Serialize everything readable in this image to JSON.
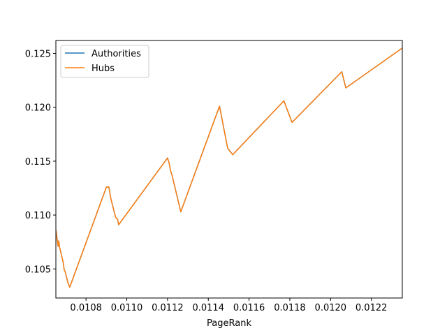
{
  "chart_data": {
    "type": "line",
    "title": "",
    "xlabel": "PageRank",
    "ylabel": "",
    "xlim": [
      0.010652,
      0.012352
    ],
    "ylim": [
      0.1023,
      0.1262
    ],
    "xticks": [
      0.0108,
      0.011,
      0.0112,
      0.0114,
      0.0116,
      0.0118,
      0.012,
      0.0122
    ],
    "xtick_labels": [
      "0.0108",
      "0.0110",
      "0.0112",
      "0.0114",
      "0.0116",
      "0.0118",
      "0.0120",
      "0.0122"
    ],
    "yticks": [
      0.105,
      0.11,
      0.115,
      0.12,
      0.125
    ],
    "ytick_labels": [
      "0.105",
      "0.110",
      "0.115",
      "0.120",
      "0.125"
    ],
    "grid": false,
    "legend_position": "top-left",
    "series": [
      {
        "name": "Authorities",
        "color": "#1f77b4",
        "x": [
          0.010652,
          0.010663,
          0.010666,
          0.01067,
          0.010673,
          0.010688,
          0.010693,
          0.010697,
          0.01071,
          0.01072,
          0.0109,
          0.010912,
          0.010922,
          0.010945,
          0.010955,
          0.01096,
          0.0112,
          0.011208,
          0.011215,
          0.011222,
          0.011265,
          0.011455,
          0.011495,
          0.01152,
          0.011771,
          0.011811,
          0.012055,
          0.012075,
          0.012352
        ],
        "y": [
          0.1086,
          0.1071,
          0.1076,
          0.107,
          0.1068,
          0.1056,
          0.1049,
          0.1048,
          0.1038,
          0.1033,
          0.1126,
          0.1126,
          0.1115,
          0.1098,
          0.1096,
          0.1091,
          0.1153,
          0.1148,
          0.1141,
          0.1137,
          0.1103,
          0.1201,
          0.1162,
          0.1156,
          0.1206,
          0.1186,
          0.1233,
          0.1218,
          0.1255
        ]
      },
      {
        "name": "Hubs",
        "color": "#ff7f0e",
        "x": [
          0.010652,
          0.010663,
          0.010666,
          0.01067,
          0.010673,
          0.010688,
          0.010693,
          0.010697,
          0.01071,
          0.01072,
          0.0109,
          0.010912,
          0.010922,
          0.010945,
          0.010955,
          0.01096,
          0.0112,
          0.011208,
          0.011215,
          0.011222,
          0.011265,
          0.011455,
          0.011495,
          0.01152,
          0.011771,
          0.011811,
          0.012055,
          0.012075,
          0.012352
        ],
        "y": [
          0.1086,
          0.1071,
          0.1076,
          0.107,
          0.1068,
          0.1056,
          0.1049,
          0.1048,
          0.1038,
          0.1033,
          0.1126,
          0.1126,
          0.1115,
          0.1098,
          0.1096,
          0.1091,
          0.1153,
          0.1148,
          0.1141,
          0.1137,
          0.1103,
          0.1201,
          0.1162,
          0.1156,
          0.1206,
          0.1186,
          0.1233,
          0.1218,
          0.1255
        ]
      }
    ]
  }
}
